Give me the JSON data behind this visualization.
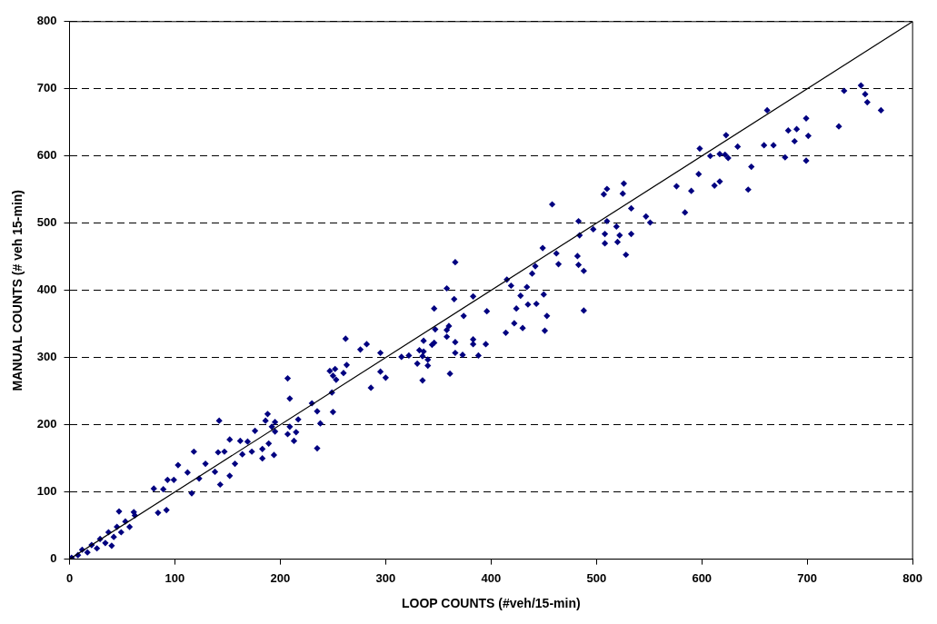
{
  "chart_data": {
    "type": "scatter",
    "xlabel": "LOOP COUNTS (#veh/15-min)",
    "ylabel": "MANUAL COUNTS (# veh 15-min)",
    "xlim": [
      0,
      800
    ],
    "ylim": [
      0,
      800
    ],
    "xticks": [
      0,
      100,
      200,
      300,
      400,
      500,
      600,
      700,
      800
    ],
    "yticks": [
      0,
      100,
      200,
      300,
      400,
      500,
      600,
      700,
      800
    ],
    "grid": "y",
    "line_style": "dashed",
    "marker": "diamond",
    "legend": false,
    "series": [
      {
        "type": "scatter",
        "color": "#000080",
        "x": [
          751,
          735,
          755,
          757,
          770,
          730,
          699,
          701,
          682,
          690,
          688,
          679,
          699,
          662,
          659,
          668,
          647,
          644,
          634,
          623,
          608,
          617,
          622,
          625,
          617,
          612,
          598,
          597,
          590,
          584,
          576,
          551,
          547,
          533,
          533,
          528,
          526,
          525,
          510,
          507,
          510,
          519,
          522,
          520,
          508,
          508,
          497,
          484,
          483,
          458,
          449,
          462,
          482,
          464,
          483,
          442,
          488,
          488,
          439,
          415,
          419,
          434,
          428,
          450,
          435,
          443,
          424,
          453,
          422,
          430,
          414,
          451,
          366,
          358,
          365,
          383,
          346,
          374,
          396,
          360,
          347,
          358,
          358,
          336,
          346,
          344,
          366,
          383,
          383,
          395,
          332,
          336,
          335,
          315,
          322,
          340,
          330,
          340,
          366,
          373,
          388,
          335,
          361,
          262,
          276,
          282,
          295,
          247,
          252,
          250,
          253,
          260,
          263,
          295,
          300,
          286,
          249,
          207,
          209,
          230,
          235,
          250,
          217,
          238,
          235,
          209,
          207,
          215,
          213,
          195,
          188,
          186,
          192,
          195,
          189,
          194,
          183,
          183,
          173,
          176,
          169,
          162,
          164,
          157,
          152,
          147,
          152,
          143,
          141,
          142,
          138,
          129,
          123,
          118,
          116,
          112,
          103,
          99,
          93,
          80,
          89,
          84,
          92,
          47,
          61,
          40,
          2,
          8,
          12,
          17,
          21,
          26,
          29,
          34,
          37,
          42,
          45,
          49,
          53,
          57,
          62
        ],
        "values": [
          705,
          697,
          692,
          680,
          668,
          644,
          656,
          630,
          638,
          640,
          622,
          598,
          593,
          668,
          616,
          616,
          584,
          550,
          614,
          631,
          600,
          603,
          602,
          597,
          562,
          556,
          611,
          573,
          548,
          516,
          555,
          501,
          510,
          522,
          484,
          453,
          559,
          544,
          551,
          543,
          503,
          495,
          482,
          472,
          484,
          470,
          491,
          482,
          503,
          528,
          463,
          455,
          451,
          439,
          438,
          436,
          429,
          370,
          425,
          416,
          407,
          405,
          392,
          394,
          379,
          380,
          373,
          362,
          351,
          344,
          337,
          340,
          442,
          403,
          387,
          391,
          373,
          362,
          369,
          347,
          342,
          341,
          331,
          325,
          322,
          319,
          323,
          327,
          320,
          320,
          311,
          309,
          302,
          301,
          303,
          297,
          291,
          288,
          307,
          304,
          303,
          266,
          276,
          328,
          312,
          320,
          307,
          280,
          283,
          273,
          267,
          277,
          289,
          279,
          270,
          255,
          248,
          269,
          239,
          232,
          220,
          219,
          208,
          202,
          165,
          197,
          186,
          189,
          176,
          204,
          216,
          206,
          197,
          190,
          172,
          155,
          150,
          164,
          160,
          191,
          175,
          176,
          156,
          142,
          178,
          160,
          124,
          111,
          159,
          206,
          130,
          142,
          120,
          160,
          98,
          129,
          140,
          118,
          118,
          105,
          104,
          69,
          73,
          71,
          70,
          20,
          2,
          6,
          14,
          10,
          21,
          16,
          30,
          24,
          40,
          33,
          48,
          40,
          56,
          48,
          65
        ]
      },
      {
        "type": "line",
        "color": "#000000",
        "line_style": "solid",
        "marker": "none",
        "x": [
          0,
          800
        ],
        "values": [
          0,
          800
        ]
      }
    ]
  }
}
